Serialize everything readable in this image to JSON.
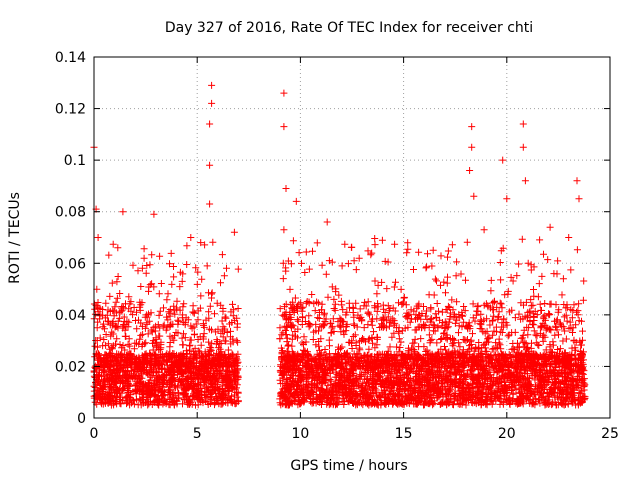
{
  "chart_data": {
    "type": "scatter",
    "title": "Day 327 of 2016, Rate Of TEC Index for receiver chti",
    "xlabel": "GPS time / hours",
    "ylabel": "ROTI / TECUs",
    "xlim": [
      0,
      25
    ],
    "ylim": [
      0,
      0.14
    ],
    "x_ticks": [
      0,
      5,
      10,
      15,
      20,
      25
    ],
    "x_tick_labels": [
      "0",
      "5",
      "10",
      "15",
      "20",
      "25"
    ],
    "y_ticks": [
      0,
      0.02,
      0.04,
      0.06,
      0.08,
      0.1,
      0.12,
      0.14
    ],
    "y_tick_labels": [
      "0",
      "0.02",
      "0.04",
      "0.06",
      "0.08",
      "0.1",
      "0.12",
      "0.14"
    ],
    "grid": true,
    "marker": "+",
    "series": [
      {
        "name": "ROTI",
        "color": "#ff0000",
        "coverage_hours": [
          [
            0,
            7.0
          ],
          [
            9.0,
            23.8
          ]
        ],
        "base_range": [
          0.005,
          0.025
        ],
        "notable_points": [
          {
            "x": 0.0,
            "y": 0.105
          },
          {
            "x": 0.1,
            "y": 0.081
          },
          {
            "x": 0.2,
            "y": 0.07
          },
          {
            "x": 1.4,
            "y": 0.08
          },
          {
            "x": 2.9,
            "y": 0.079
          },
          {
            "x": 5.7,
            "y": 0.129
          },
          {
            "x": 5.7,
            "y": 0.122
          },
          {
            "x": 5.6,
            "y": 0.114
          },
          {
            "x": 5.6,
            "y": 0.098
          },
          {
            "x": 5.6,
            "y": 0.083
          },
          {
            "x": 9.2,
            "y": 0.126
          },
          {
            "x": 9.2,
            "y": 0.113
          },
          {
            "x": 9.3,
            "y": 0.089
          },
          {
            "x": 9.2,
            "y": 0.073
          },
          {
            "x": 9.8,
            "y": 0.084
          },
          {
            "x": 11.3,
            "y": 0.076
          },
          {
            "x": 18.3,
            "y": 0.113
          },
          {
            "x": 18.3,
            "y": 0.105
          },
          {
            "x": 18.2,
            "y": 0.096
          },
          {
            "x": 18.4,
            "y": 0.086
          },
          {
            "x": 19.8,
            "y": 0.1
          },
          {
            "x": 20.0,
            "y": 0.085
          },
          {
            "x": 20.8,
            "y": 0.114
          },
          {
            "x": 20.8,
            "y": 0.105
          },
          {
            "x": 20.9,
            "y": 0.092
          },
          {
            "x": 23.4,
            "y": 0.092
          },
          {
            "x": 23.5,
            "y": 0.085
          },
          {
            "x": 18.9,
            "y": 0.073
          },
          {
            "x": 22.1,
            "y": 0.074
          },
          {
            "x": 23.0,
            "y": 0.07
          },
          {
            "x": 12.6,
            "y": 0.061
          },
          {
            "x": 15.2,
            "y": 0.068
          },
          {
            "x": 6.8,
            "y": 0.072
          }
        ]
      }
    ]
  }
}
